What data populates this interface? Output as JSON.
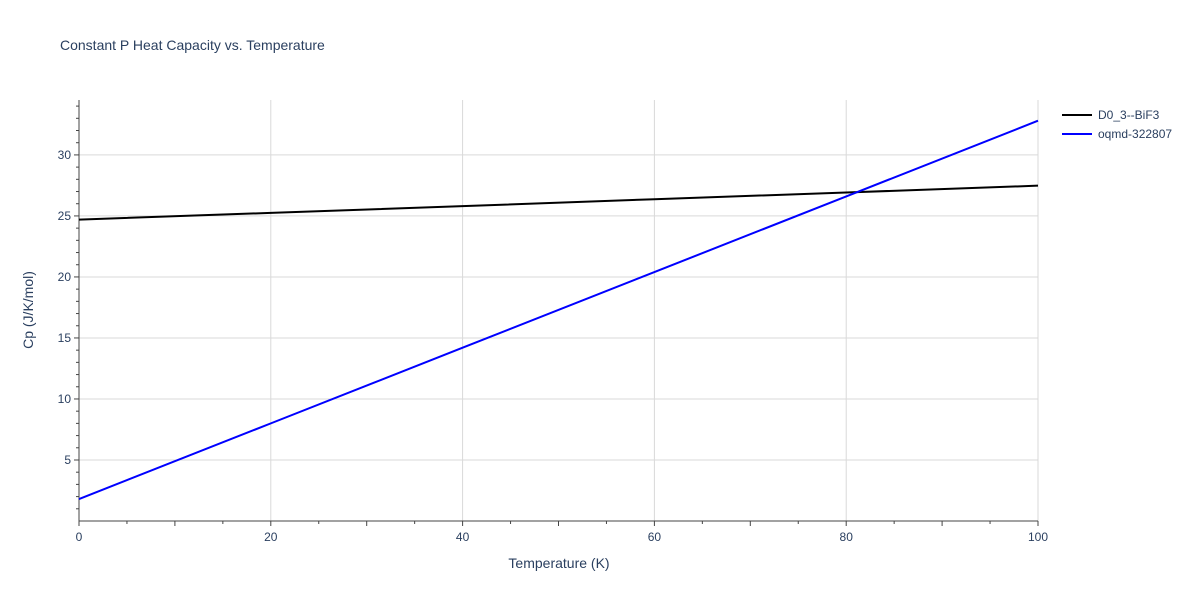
{
  "chart_data": {
    "type": "line",
    "title": "Constant P Heat Capacity vs. Temperature",
    "xlabel": "Temperature (K)",
    "ylabel": "Cp (J/K/mol)",
    "xlim": [
      0,
      100
    ],
    "ylim": [
      0,
      34.5
    ],
    "x_ticks": [
      0,
      20,
      40,
      60,
      80,
      100
    ],
    "y_ticks": [
      5,
      10,
      15,
      20,
      25,
      30
    ],
    "grid": true,
    "legend_position": "top-right",
    "series": [
      {
        "name": "D0_3--BiF3",
        "color": "#000000",
        "x": [
          0,
          20,
          40,
          60,
          80,
          100
        ],
        "y": [
          24.7,
          25.25,
          25.8,
          26.37,
          26.92,
          27.48
        ]
      },
      {
        "name": "oqmd-322807",
        "color": "#0000ff",
        "x": [
          0,
          20,
          40,
          60,
          80,
          100
        ],
        "y": [
          1.8,
          8.0,
          14.2,
          20.4,
          26.6,
          32.8
        ]
      }
    ]
  }
}
